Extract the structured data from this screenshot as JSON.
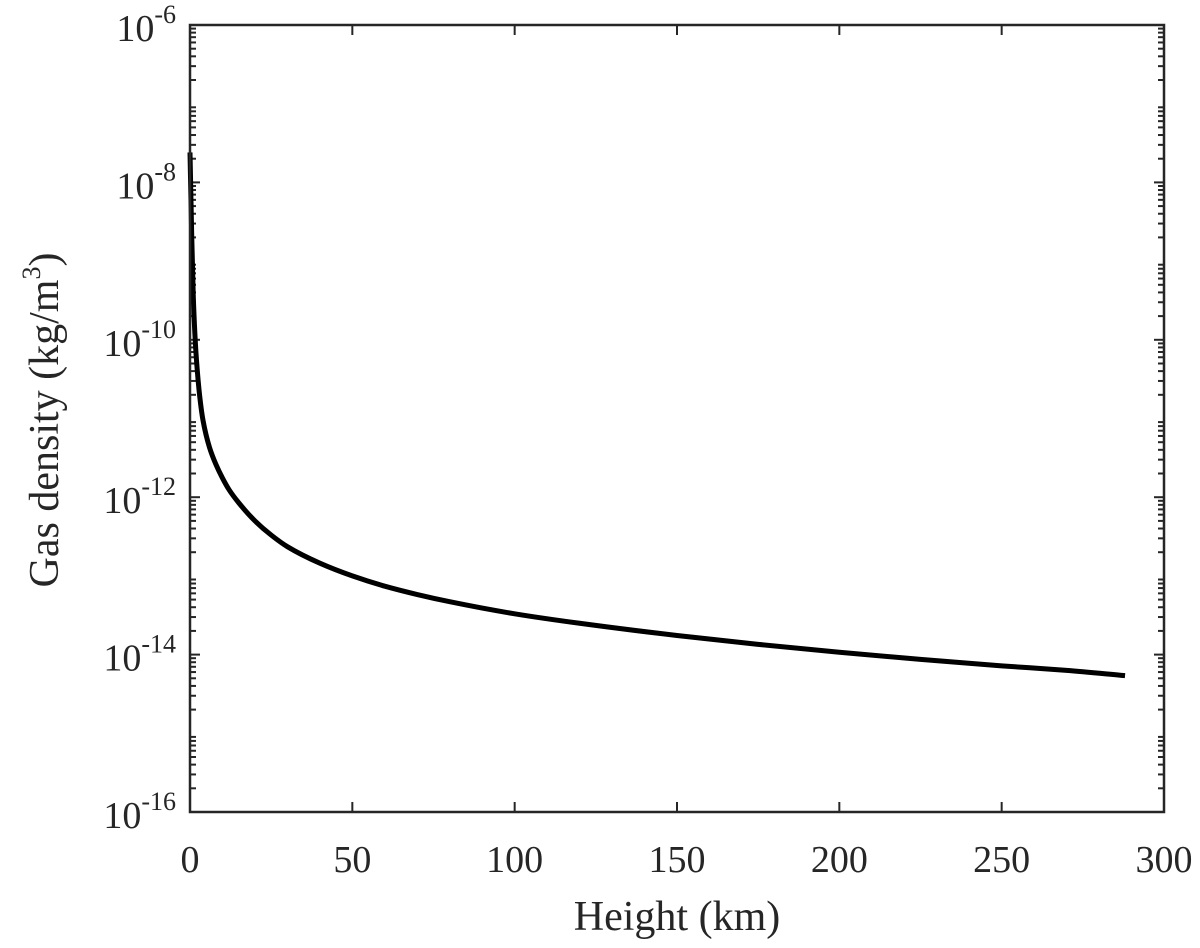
{
  "chart_data": {
    "type": "line",
    "title": "",
    "xlabel": "Height (km)",
    "ylabel": {
      "main": "Gas density (kg/m",
      "sup": "3",
      "close": ")"
    },
    "xlim": [
      0,
      300
    ],
    "ylim": [
      1e-16,
      1e-06
    ],
    "yscale": "log",
    "grid": false,
    "x_ticks": [
      {
        "value": 0,
        "label": "0"
      },
      {
        "value": 50,
        "label": "50"
      },
      {
        "value": 100,
        "label": "100"
      },
      {
        "value": 150,
        "label": "150"
      },
      {
        "value": 200,
        "label": "200"
      },
      {
        "value": 250,
        "label": "250"
      },
      {
        "value": 300,
        "label": "300"
      }
    ],
    "y_ticks": [
      {
        "value": 1e-06,
        "base": "10",
        "exp": "-6"
      },
      {
        "value": 1e-08,
        "base": "10",
        "exp": "-8"
      },
      {
        "value": 1e-10,
        "base": "10",
        "exp": "-10"
      },
      {
        "value": 1e-12,
        "base": "10",
        "exp": "-12"
      },
      {
        "value": 1e-14,
        "base": "10",
        "exp": "-14"
      },
      {
        "value": 1e-16,
        "base": "10",
        "exp": "-16"
      }
    ],
    "series": [
      {
        "color": "#000000",
        "x": [
          0,
          0.5,
          1,
          1.5,
          2,
          3,
          4,
          6,
          8,
          10,
          12,
          15,
          20,
          25,
          30,
          40,
          50,
          60,
          70,
          80,
          100,
          120,
          150,
          175,
          200,
          225,
          250,
          270,
          288
        ],
        "y": [
          2.4e-08,
          2.4e-09,
          3.7e-10,
          1.2e-10,
          5.5e-11,
          1.9e-11,
          9.5e-12,
          4.3e-12,
          2.6e-12,
          1.75e-12,
          1.25e-12,
          8.5e-13,
          5e-13,
          3.3e-13,
          2.35e-13,
          1.45e-13,
          1e-13,
          7.4e-14,
          5.8e-14,
          4.7e-14,
          3.3e-14,
          2.5e-14,
          1.75e-14,
          1.35e-14,
          1.07e-14,
          8.7e-15,
          7.2e-15,
          6.3e-15,
          5.4e-15
        ]
      }
    ]
  }
}
